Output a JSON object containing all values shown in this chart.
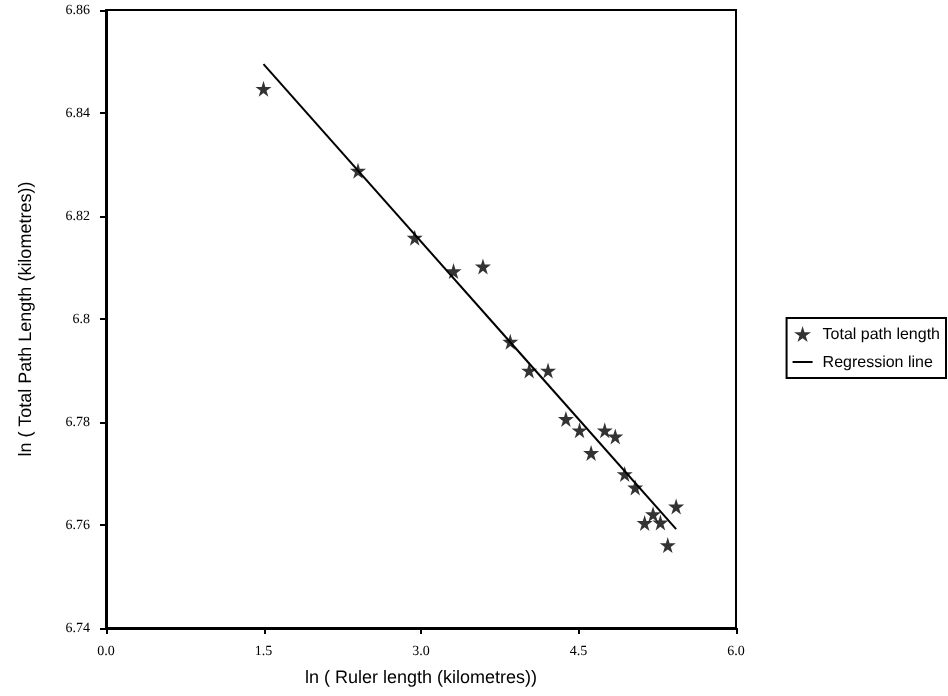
{
  "chart_data": {
    "type": "scatter",
    "xlabel": "ln ( Ruler length (kilometres))",
    "ylabel": "ln ( Total Path Length (kilometres))",
    "xlim": [
      0,
      6
    ],
    "xticks": [
      {
        "value": 0,
        "label": "0.0"
      },
      {
        "value": 1.5,
        "label": "1.5"
      },
      {
        "value": 3,
        "label": "3.0"
      },
      {
        "value": 4.5,
        "label": "4.5"
      },
      {
        "value": 6,
        "label": "6.0"
      }
    ],
    "ylim": [
      6.74,
      6.86
    ],
    "yticks": [
      6.74,
      6.76,
      6.78,
      6.8,
      6.82,
      6.84,
      6.86
    ],
    "legend": "right",
    "grid": false,
    "series": [
      {
        "name": "Total path length",
        "marker": "star",
        "color": "#000000",
        "x": [
          1.5,
          2.4,
          2.94,
          3.31,
          3.59,
          3.85,
          4.03,
          4.21,
          4.38,
          4.51,
          4.62,
          4.75,
          4.85,
          4.94,
          5.04,
          5.13,
          5.21,
          5.28,
          5.35,
          5.43
        ],
        "values": [
          6.8447,
          6.8288,
          6.8158,
          6.8093,
          6.8102,
          6.7956,
          6.79,
          6.79,
          6.7806,
          6.7784,
          6.774,
          6.7784,
          6.7772,
          6.7699,
          6.7673,
          6.7604,
          6.7621,
          6.7605,
          6.7561,
          6.7636
        ]
      },
      {
        "name": "Regression line",
        "type": "line",
        "marker": "none",
        "color": "#000000",
        "x": [
          1.5,
          5.43
        ],
        "values": [
          6.8495,
          6.7592
        ]
      }
    ]
  }
}
